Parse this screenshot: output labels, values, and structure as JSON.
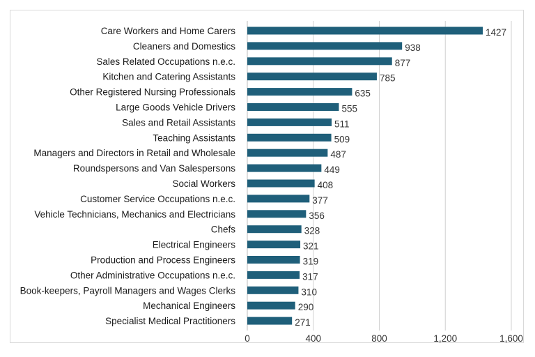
{
  "chart_data": {
    "type": "bar",
    "orientation": "horizontal",
    "categories": [
      "Care Workers and Home Carers",
      "Cleaners and Domestics",
      "Sales Related Occupations n.e.c.",
      "Kitchen and Catering Assistants",
      "Other Registered Nursing Professionals",
      "Large Goods Vehicle Drivers",
      "Sales and Retail Assistants",
      "Teaching Assistants",
      "Managers and Directors in Retail and Wholesale",
      "Roundspersons and Van Salespersons",
      "Social Workers",
      "Customer Service Occupations n.e.c.",
      "Vehicle Technicians, Mechanics and Electricians",
      "Chefs",
      "Electrical Engineers",
      "Production and Process Engineers",
      "Other Administrative Occupations n.e.c.",
      "Book-keepers, Payroll Managers and Wages Clerks",
      "Mechanical Engineers",
      "Specialist Medical Practitioners"
    ],
    "values": [
      1427,
      938,
      877,
      785,
      635,
      555,
      511,
      509,
      487,
      449,
      408,
      377,
      356,
      328,
      321,
      319,
      317,
      310,
      290,
      271
    ],
    "xlim": [
      0,
      1600
    ],
    "xticks": [
      0,
      400,
      800,
      1200,
      1600
    ],
    "xtick_labels": [
      "0",
      "400",
      "800",
      "1,200",
      "1,600"
    ],
    "title": "",
    "xlabel": "",
    "ylabel": "",
    "grid": "vertical",
    "legend": "none",
    "bar_color": "#1f5f7a"
  }
}
